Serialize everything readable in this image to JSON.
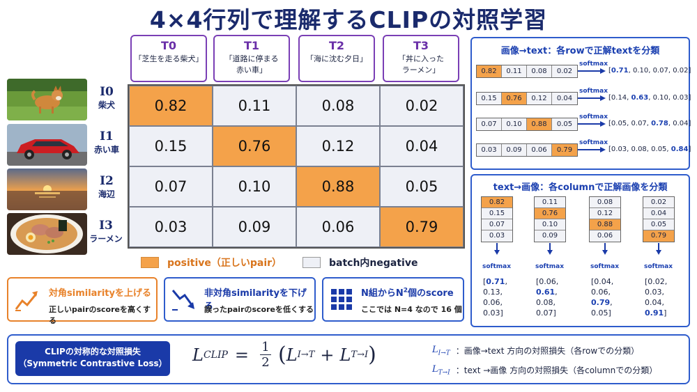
{
  "title": "4×4行列で理解するCLIPの対照学習",
  "texts": [
    {
      "id": "T0",
      "caption": "「芝生を走る柴犬」"
    },
    {
      "id": "T1",
      "caption": "「道路に停まる\n赤い車」"
    },
    {
      "id": "T2",
      "caption": "「海に沈む夕日」"
    },
    {
      "id": "T3",
      "caption": "「丼に入った\nラーメン」"
    }
  ],
  "images": [
    {
      "id": "I0",
      "name": "柴犬"
    },
    {
      "id": "I1",
      "name": "赤い車"
    },
    {
      "id": "I2",
      "name": "海辺"
    },
    {
      "id": "I3",
      "name": "ラーメン"
    }
  ],
  "matrix": [
    [
      "0.82",
      "0.11",
      "0.08",
      "0.02"
    ],
    [
      "0.15",
      "0.76",
      "0.12",
      "0.04"
    ],
    [
      "0.07",
      "0.10",
      "0.88",
      "0.05"
    ],
    [
      "0.03",
      "0.09",
      "0.06",
      "0.79"
    ]
  ],
  "legend": {
    "positive": "positive（正しいpair）",
    "negative": "batch内negative"
  },
  "colors": {
    "positive": "#f4a24a",
    "negative": "#eef0f6",
    "accent": "#1a3aa8",
    "orange_border": "#e8822a"
  },
  "tips": [
    {
      "title": "対角similarityを上げる",
      "sub": "正しいpairのscoreを高くする",
      "icon": "trend-up-icon"
    },
    {
      "title": "非対角similarityを下げる",
      "sub": "誤ったpairのscoreを低くする",
      "icon": "trend-down-icon"
    },
    {
      "title_pre": "N組からN",
      "title_sup": "2",
      "title_post": "個のscore",
      "sub": "ここでは N=4 なので 16 個",
      "icon": "grid-icon"
    }
  ],
  "row_panel": {
    "title": "画像→text：各rowで正解textを分類",
    "softmax": "softmax",
    "results": [
      [
        "[",
        "0.71",
        ", 0.10, 0.07, 0.02]"
      ],
      [
        "[0.14, ",
        "0.63",
        ", 0.10, 0.03]"
      ],
      [
        "[0.05, 0.07, ",
        "0.78",
        ", 0.04]"
      ],
      [
        "[0.03, 0.08, 0.05, ",
        "0.84",
        "]"
      ]
    ]
  },
  "col_panel": {
    "title": "text→画像：各columnで正解画像を分類",
    "softmax": "softmax",
    "results": [
      [
        "[",
        "0.71",
        ",",
        "0.13,",
        "0.06,",
        "0.03]"
      ],
      [
        "[0.06,",
        "0.61",
        ",",
        "0.08,",
        "0.07]",
        ""
      ],
      [
        "[0.04,",
        "0.06,",
        "0.79",
        ",",
        "0.05]",
        ""
      ],
      [
        "[0.02,",
        "0.03,",
        "0.04,",
        "0.91",
        "]",
        ""
      ]
    ]
  },
  "loss": {
    "label_line1": "CLIPの対称的な対照損失",
    "label_line2": "（Symmetric Contrastive Loss）",
    "formula_lhs": "L",
    "formula_lhs_sub": "CLIP",
    "half_num": "1",
    "half_den": "2",
    "term1": "L",
    "term1_sub": "I→T",
    "term2": "L",
    "term2_sub": "T→I",
    "note1_sym": "L",
    "note1_sub": "I→T",
    "note1_text": "：画像→text 方向の対照損失（各rowでの分類）",
    "note2_sym": "L",
    "note2_sub": "T→I",
    "note2_text": "：text →画像 方向の対照損失（各columnでの分類）"
  }
}
